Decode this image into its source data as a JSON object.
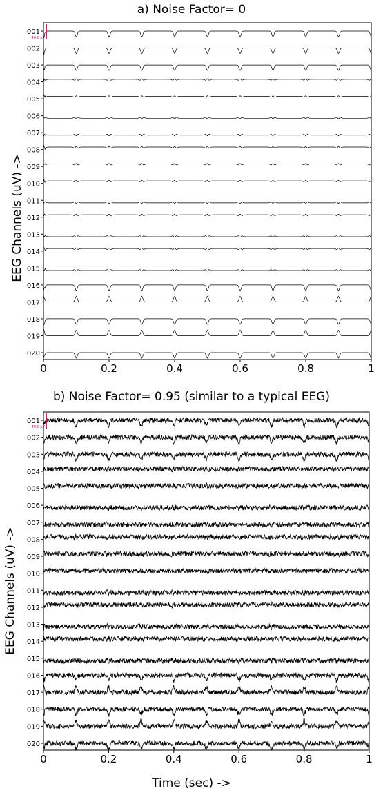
{
  "chart_data": [
    {
      "type": "line",
      "title": "a) Noise Factor= 0",
      "ylabel": "EEG Channels  (uV) ->",
      "xlabel": "",
      "xlim": [
        0,
        1
      ],
      "xticks": [
        "0",
        "0.2",
        "0.4",
        "0.6",
        "0.8",
        "1"
      ],
      "channels": [
        "001",
        "002",
        "003",
        "004",
        "005",
        "006",
        "007",
        "008",
        "009",
        "010",
        "011",
        "012",
        "013",
        "014",
        "015",
        "016",
        "017",
        "018",
        "019",
        "020"
      ],
      "scale_bar": "40.0 μV",
      "spike_period_sec": 0.1,
      "spike_times_sec": [
        0.1,
        0.2,
        0.3,
        0.4,
        0.5,
        0.6,
        0.7,
        0.8,
        0.9
      ],
      "noise_factor": 0,
      "grid": false
    },
    {
      "type": "line",
      "title": "b) Noise Factor= 0.95 (similar to a typical EEG)",
      "ylabel": "EEG Channels  (uV) ->",
      "xlabel": "Time  (sec) ->",
      "xlim": [
        0,
        1
      ],
      "xticks": [
        "0",
        "0.2",
        "0.4",
        "0.6",
        "0.8",
        "1"
      ],
      "channels": [
        "001",
        "002",
        "003",
        "004",
        "005",
        "006",
        "007",
        "008",
        "009",
        "010",
        "011",
        "012",
        "013",
        "014",
        "015",
        "016",
        "017",
        "018",
        "019",
        "020"
      ],
      "scale_bar": "40.0 μV",
      "spike_period_sec": 0.1,
      "spike_times_sec": [
        0.1,
        0.2,
        0.3,
        0.4,
        0.5,
        0.6,
        0.7,
        0.8,
        0.9
      ],
      "noise_factor": 0.95,
      "grid": false
    }
  ],
  "colors": {
    "trace": "#000000",
    "scale_bar": "#b0306a",
    "axis": "#000000"
  }
}
